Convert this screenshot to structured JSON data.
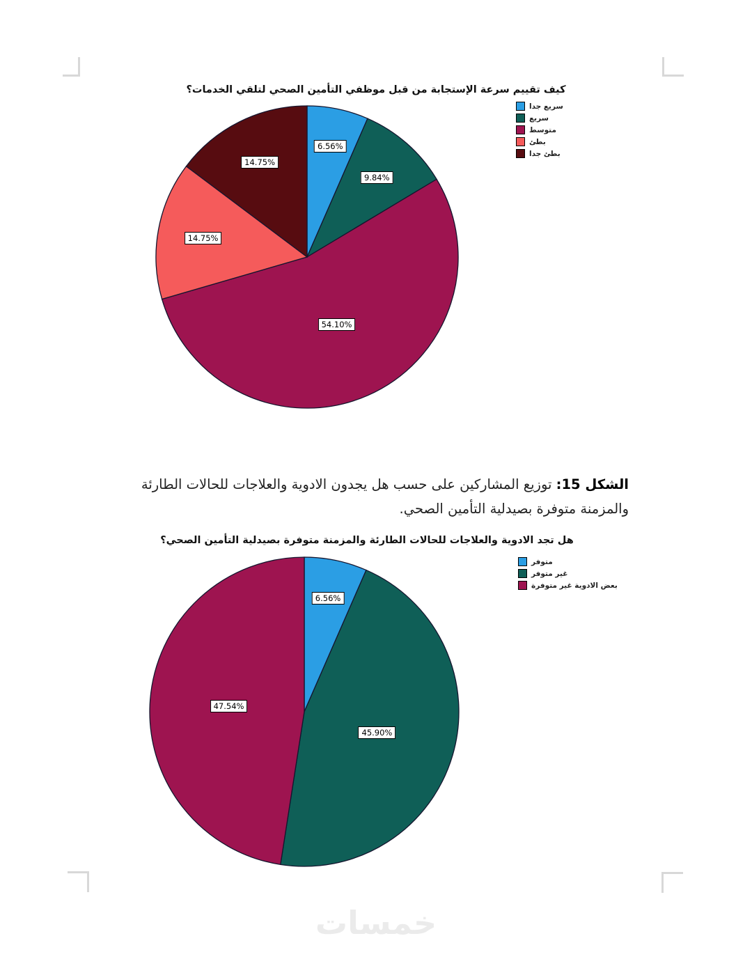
{
  "page": {
    "background": "#ffffff",
    "watermark": "خمسات"
  },
  "caption": {
    "prefix": "الشكل 15:",
    "text": "توزيع المشاركين على حسب هل يجدون الادوية والعلاجات للحالات الطارئة والمزمنة متوفرة بصيدلية التأمين الصحي."
  },
  "chart_data": [
    {
      "type": "pie",
      "title": "كيف تقييم سرعة الإستجابة من قبل موظفي التأمين الصحي لتلقي الخدمات؟",
      "categories": [
        "سريع جدا",
        "سريع",
        "متوسط",
        "بطئ",
        "بطئ جدا"
      ],
      "values": [
        6.56,
        9.84,
        54.1,
        14.75,
        14.75
      ],
      "value_labels": [
        "6.56%",
        "9.84%",
        "54.10%",
        "14.75%",
        "14.75%"
      ],
      "colors": [
        "#2b9ee4",
        "#0f5f57",
        "#9e1450",
        "#f55b5b",
        "#570c10"
      ],
      "slice_border_color": "#15152e",
      "legend_position": "top-right",
      "start_angle_deg": 0,
      "direction": "clockwise"
    },
    {
      "type": "pie",
      "title": "هل تجد الادوية والعلاجات للحالات الطارئة والمزمنة متوفرة بصيدلية التأمين الصحي؟",
      "categories": [
        "متوفر",
        "غير متوفر",
        "بعض الادوية غير متوفرة"
      ],
      "values": [
        6.56,
        45.9,
        47.54
      ],
      "value_labels": [
        "6.56%",
        "45.90%",
        "47.54%"
      ],
      "colors": [
        "#2b9ee4",
        "#0f5f57",
        "#9e1450"
      ],
      "slice_border_color": "#15152e",
      "legend_position": "top-right",
      "start_angle_deg": 0,
      "direction": "clockwise"
    }
  ]
}
